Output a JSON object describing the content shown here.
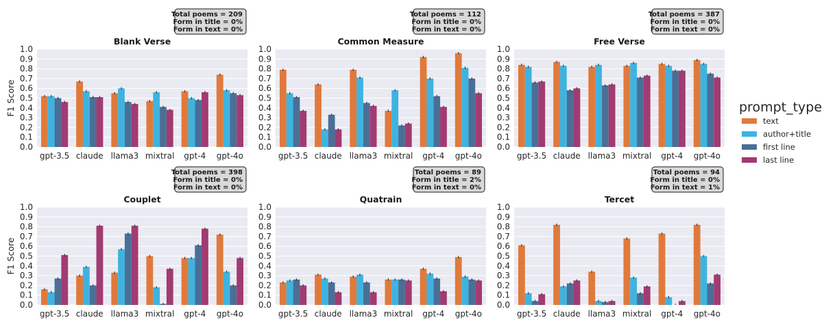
{
  "chart_data": {
    "type": "bar",
    "ylabel": "F1 Score",
    "ylim": [
      0,
      1.0
    ],
    "yticks": [
      "0.0",
      "0.1",
      "0.2",
      "0.3",
      "0.4",
      "0.5",
      "0.6",
      "0.7",
      "0.8",
      "0.9",
      "1.0"
    ],
    "grid": true,
    "categories": [
      "gpt-3.5",
      "claude",
      "llama3",
      "mixtral",
      "gpt-4",
      "gpt-4o"
    ],
    "legend": {
      "title": "prompt_type",
      "placement": "right",
      "entries": [
        "text",
        "author+title",
        "first line",
        "last line"
      ],
      "colors": [
        "#e07a3c",
        "#3fb3e0",
        "#4a6f96",
        "#a23b72"
      ]
    },
    "panels": [
      {
        "title": "Blank Verse",
        "stats": [
          "Total poems = 209",
          "Form in title = 0%",
          "Form in text = 0%"
        ],
        "series": [
          {
            "name": "text",
            "values": [
              0.52,
              0.67,
              0.55,
              0.47,
              0.57,
              0.74
            ]
          },
          {
            "name": "author+title",
            "values": [
              0.52,
              0.57,
              0.6,
              0.56,
              0.5,
              0.58
            ]
          },
          {
            "name": "first line",
            "values": [
              0.5,
              0.51,
              0.46,
              0.41,
              0.48,
              0.55
            ]
          },
          {
            "name": "last line",
            "values": [
              0.46,
              0.51,
              0.44,
              0.38,
              0.56,
              0.53
            ]
          }
        ]
      },
      {
        "title": "Common Measure",
        "stats": [
          "Total poems = 112",
          "Form in title = 0%",
          "Form in text = 0%"
        ],
        "series": [
          {
            "name": "text",
            "values": [
              0.79,
              0.64,
              0.79,
              0.37,
              0.92,
              0.96
            ]
          },
          {
            "name": "author+title",
            "values": [
              0.55,
              0.18,
              0.71,
              0.58,
              0.7,
              0.81
            ]
          },
          {
            "name": "first line",
            "values": [
              0.51,
              0.33,
              0.45,
              0.22,
              0.52,
              0.7
            ]
          },
          {
            "name": "last line",
            "values": [
              0.37,
              0.18,
              0.42,
              0.24,
              0.41,
              0.55
            ]
          }
        ]
      },
      {
        "title": "Free Verse",
        "stats": [
          "Total poems = 387",
          "Form in title = 0%",
          "Form in text = 0%"
        ],
        "series": [
          {
            "name": "text",
            "values": [
              0.84,
              0.87,
              0.82,
              0.83,
              0.85,
              0.89
            ]
          },
          {
            "name": "author+title",
            "values": [
              0.82,
              0.83,
              0.84,
              0.86,
              0.83,
              0.85
            ]
          },
          {
            "name": "first line",
            "values": [
              0.66,
              0.58,
              0.63,
              0.71,
              0.78,
              0.75
            ]
          },
          {
            "name": "last line",
            "values": [
              0.67,
              0.6,
              0.64,
              0.73,
              0.78,
              0.71
            ]
          }
        ]
      },
      {
        "title": "Couplet",
        "stats": [
          "Total poems = 398",
          "Form in title = 0%",
          "Form in text = 0%"
        ],
        "series": [
          {
            "name": "text",
            "values": [
              0.16,
              0.3,
              0.33,
              0.5,
              0.48,
              0.72
            ]
          },
          {
            "name": "author+title",
            "values": [
              0.13,
              0.39,
              0.57,
              0.18,
              0.48,
              0.34
            ]
          },
          {
            "name": "first line",
            "values": [
              0.27,
              0.2,
              0.73,
              0.01,
              0.61,
              0.2
            ]
          },
          {
            "name": "last line",
            "values": [
              0.51,
              0.81,
              0.81,
              0.37,
              0.78,
              0.48
            ]
          }
        ]
      },
      {
        "title": "Quatrain",
        "stats": [
          "Total poems = 89",
          "Form in title = 2%",
          "Form in text = 0%"
        ],
        "series": [
          {
            "name": "text",
            "values": [
              0.23,
              0.31,
              0.29,
              0.26,
              0.37,
              0.49
            ]
          },
          {
            "name": "author+title",
            "values": [
              0.25,
              0.27,
              0.31,
              0.26,
              0.32,
              0.29
            ]
          },
          {
            "name": "first line",
            "values": [
              0.26,
              0.23,
              0.23,
              0.26,
              0.27,
              0.26
            ]
          },
          {
            "name": "last line",
            "values": [
              0.2,
              0.13,
              0.13,
              0.25,
              0.14,
              0.25
            ]
          }
        ]
      },
      {
        "title": "Tercet",
        "stats": [
          "Total poems = 94",
          "Form in title = 0%",
          "Form in text = 1%"
        ],
        "series": [
          {
            "name": "text",
            "values": [
              0.61,
              0.82,
              0.34,
              0.68,
              0.73,
              0.82
            ]
          },
          {
            "name": "author+title",
            "values": [
              0.12,
              0.19,
              0.04,
              0.28,
              0.08,
              0.5
            ]
          },
          {
            "name": "first line",
            "values": [
              0.04,
              0.22,
              0.03,
              0.12,
              0.0,
              0.22
            ]
          },
          {
            "name": "last line",
            "values": [
              0.11,
              0.25,
              0.04,
              0.19,
              0.04,
              0.31
            ]
          }
        ]
      }
    ]
  }
}
